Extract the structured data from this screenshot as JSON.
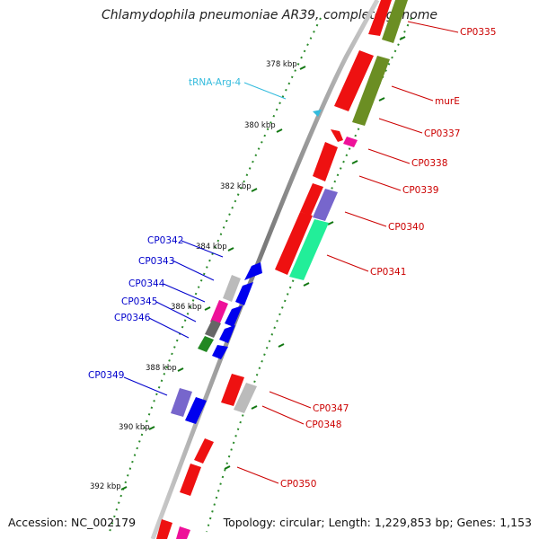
{
  "title": "Chlamydophila pneumoniae AR39, complete genome",
  "footer": {
    "accession": "Accession: NC_002179",
    "topology": "Topology: circular; Length: 1,229,853 bp; Genes: 1,153"
  },
  "colors": {
    "forward_label": "#cc0000",
    "reverse_label": "#0000cc",
    "trna_label": "#33bbdd",
    "backbone": "#777777",
    "tick": "#117711"
  },
  "ticks": [
    "378 kbp",
    "380 kbp",
    "382 kbp",
    "384 kbp",
    "386 kbp",
    "388 kbp",
    "390 kbp",
    "392 kbp"
  ],
  "genes": {
    "forward": [
      "CP0335",
      "murE",
      "CP0337",
      "CP0338",
      "CP0339",
      "CP0340",
      "CP0341",
      "CP0347",
      "CP0348",
      "CP0350"
    ],
    "reverse": [
      "CP0342",
      "CP0343",
      "CP0344",
      "CP0345",
      "CP0346",
      "CP0349"
    ],
    "trna": [
      "tRNA-Arg-4"
    ]
  }
}
